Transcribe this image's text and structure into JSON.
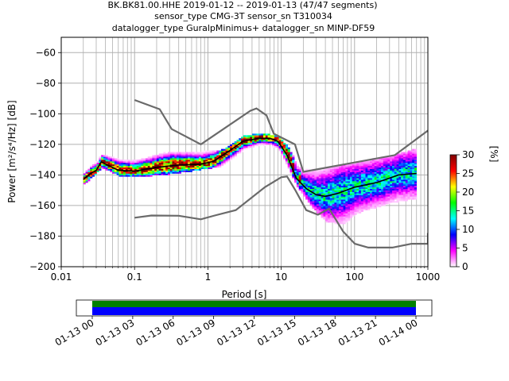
{
  "title_lines": [
    "BK.BK81.00.HHE   2019-01-12 -- 2019-01-13  (47/47 segments)",
    "sensor_type CMG-3T sensor_sn T310034",
    "datalogger_type GuralpMinimus+ datalogger_sn MINP-DF59"
  ],
  "colors": {
    "noise_models": "#6a6a6a",
    "mean_curve": "#000000",
    "grid": "#b0b0b0",
    "coverage_top": "#008000",
    "coverage_bottom": "#0000ff"
  },
  "colorbar": {
    "label": "[%]",
    "ticks": [
      "0",
      "5",
      "10",
      "15",
      "20",
      "25",
      "30"
    ],
    "stops": [
      "#ffffff",
      "#ff00ff",
      "#0000ff",
      "#00ffff",
      "#00ff00",
      "#ffff00",
      "#ff0000",
      "#800000"
    ]
  },
  "chart_data": {
    "type": "heatmap",
    "xlabel": "Period [s]",
    "ylabel": "Power [m²/s⁴/Hz] [dB]",
    "xscale": "log",
    "xlim": [
      0.01,
      1000
    ],
    "ylim": [
      -200,
      -50
    ],
    "xticks": [
      "0.01",
      "0.1",
      "1",
      "10",
      "100",
      "1000"
    ],
    "yticks": [
      "−200",
      "−180",
      "−160",
      "−140",
      "−120",
      "−100",
      "−80",
      "−60"
    ],
    "grid": true,
    "high_noise_model": [
      [
        0.1,
        -91
      ],
      [
        0.22,
        -97
      ],
      [
        0.32,
        -110
      ],
      [
        0.8,
        -120
      ],
      [
        3.8,
        -98
      ],
      [
        4.6,
        -96.5
      ],
      [
        6.3,
        -101
      ],
      [
        7.9,
        -113
      ],
      [
        15.4,
        -120
      ],
      [
        20,
        -138
      ],
      [
        354.8,
        -127
      ],
      [
        1000,
        -111
      ]
    ],
    "low_noise_model": [
      [
        0.1,
        -168
      ],
      [
        0.17,
        -166.5
      ],
      [
        0.4,
        -166.7
      ],
      [
        0.8,
        -169
      ],
      [
        1.24,
        -166.5
      ],
      [
        2.4,
        -163
      ],
      [
        6.0,
        -148
      ],
      [
        10.0,
        -141.5
      ],
      [
        12.0,
        -141
      ],
      [
        15.6,
        -150
      ],
      [
        21.9,
        -163
      ],
      [
        31.6,
        -166
      ],
      [
        45,
        -162
      ],
      [
        70,
        -177
      ],
      [
        101,
        -185
      ],
      [
        154,
        -187.5
      ],
      [
        328,
        -187.5
      ],
      [
        600,
        -185
      ],
      [
        1000,
        -185
      ],
      [
        1000,
        -178
      ]
    ],
    "mean_psd": [
      [
        0.02,
        -143
      ],
      [
        0.025,
        -139
      ],
      [
        0.03,
        -137
      ],
      [
        0.035,
        -131.5
      ],
      [
        0.045,
        -134
      ],
      [
        0.06,
        -137
      ],
      [
        0.1,
        -137.5
      ],
      [
        0.2,
        -135
      ],
      [
        0.4,
        -133.5
      ],
      [
        0.8,
        -133
      ],
      [
        1.2,
        -131
      ],
      [
        2,
        -124
      ],
      [
        3,
        -118
      ],
      [
        5,
        -116
      ],
      [
        7,
        -116
      ],
      [
        9,
        -118
      ],
      [
        12,
        -127
      ],
      [
        16,
        -142
      ],
      [
        22,
        -149
      ],
      [
        30,
        -153
      ],
      [
        40,
        -154
      ],
      [
        60,
        -152
      ],
      [
        100,
        -148
      ],
      [
        200,
        -145
      ],
      [
        400,
        -140
      ],
      [
        700,
        -139
      ]
    ],
    "psd_spread_upper": [
      [
        0.02,
        -139
      ],
      [
        0.035,
        -127
      ],
      [
        0.06,
        -130
      ],
      [
        0.1,
        -131
      ],
      [
        0.2,
        -127
      ],
      [
        0.3,
        -125
      ],
      [
        0.8,
        -125
      ],
      [
        1.5,
        -124
      ],
      [
        3,
        -115
      ],
      [
        5,
        -113
      ],
      [
        9,
        -115
      ],
      [
        12,
        -122
      ],
      [
        18,
        -137
      ],
      [
        40,
        -136
      ],
      [
        100,
        -132
      ],
      [
        300,
        -128
      ],
      [
        700,
        -123
      ]
    ],
    "psd_spread_lower": [
      [
        0.02,
        -146
      ],
      [
        0.035,
        -135
      ],
      [
        0.06,
        -140
      ],
      [
        0.1,
        -141
      ],
      [
        0.3,
        -139
      ],
      [
        0.8,
        -136
      ],
      [
        1.5,
        -134
      ],
      [
        3,
        -124
      ],
      [
        5,
        -120
      ],
      [
        9,
        -123
      ],
      [
        12,
        -135
      ],
      [
        16,
        -147
      ],
      [
        25,
        -160
      ],
      [
        40,
        -170
      ],
      [
        70,
        -172
      ],
      [
        100,
        -165
      ],
      [
        300,
        -158
      ],
      [
        700,
        -155
      ]
    ],
    "time_axis": {
      "ticks": [
        "01-13 00",
        "01-13 03",
        "01-13 06",
        "01-13 09",
        "01-13 12",
        "01-13 15",
        "01-13 18",
        "01-13 21",
        "01-14 00"
      ],
      "coverage_start": "01-13 00",
      "coverage_end": "01-14 00"
    }
  }
}
